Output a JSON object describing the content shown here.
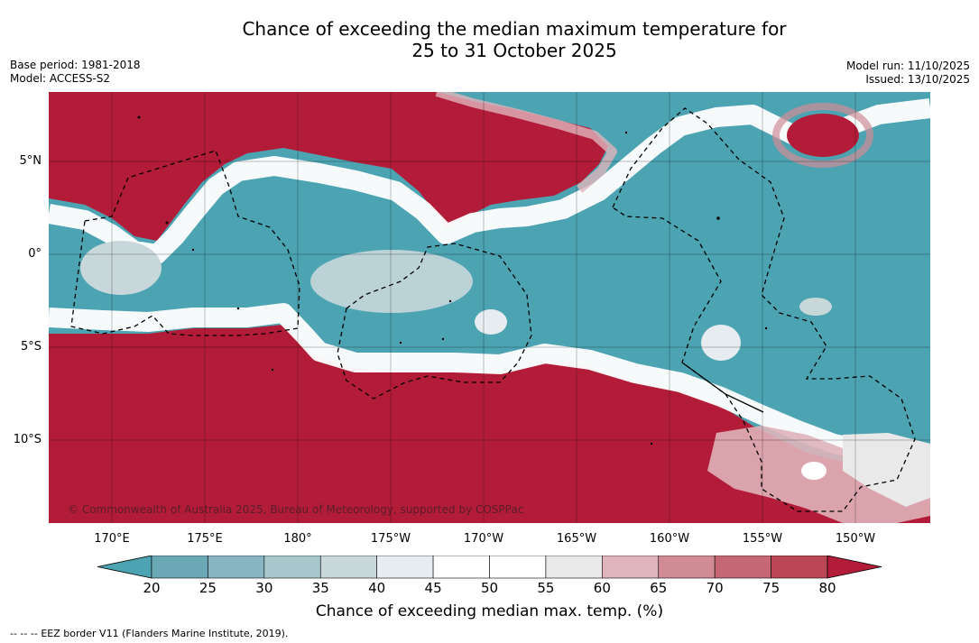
{
  "title": {
    "line1": "Chance of exceeding the median maximum temperature for",
    "line2": "25 to 31 October 2025"
  },
  "meta": {
    "base_period": "Base period: 1981-2018",
    "model": "Model: ACCESS-S2",
    "model_run": "Model run: 11/10/2025",
    "issued": "Issued: 13/10/2025"
  },
  "colors": {
    "below_20": "#4ca3b2",
    "bins": [
      "#6aa8b6",
      "#87b6c2",
      "#a7c7cc",
      "#c8d7da",
      "#e6ecef",
      "#ffffff",
      "#ffffff",
      "#e9e9ea",
      "#dfb4ba",
      "#d08b95",
      "#c66775",
      "#bb4655"
    ],
    "above_80": "#b31c38"
  },
  "map": {
    "lat_labels": [
      "5°N",
      "0°",
      "5°S",
      "10°S"
    ],
    "lon_labels": [
      "170°E",
      "175°E",
      "180°",
      "175°W",
      "170°W",
      "165°W",
      "160°W",
      "155°W",
      "150°W"
    ],
    "copyright": "© Commonwealth of Australia 2025, Bureau of Meteorology, supported by COSPPac"
  },
  "colorbar": {
    "ticks": [
      "20",
      "25",
      "30",
      "35",
      "40",
      "45",
      "50",
      "55",
      "60",
      "65",
      "70",
      "75",
      "80"
    ],
    "label": "Chance of exceeding median max. temp. (%)"
  },
  "legend": {
    "eez_symbol": "--  --  --",
    "eez_text": "EEZ border V11 (Flanders Marine Institute, 2019)."
  }
}
